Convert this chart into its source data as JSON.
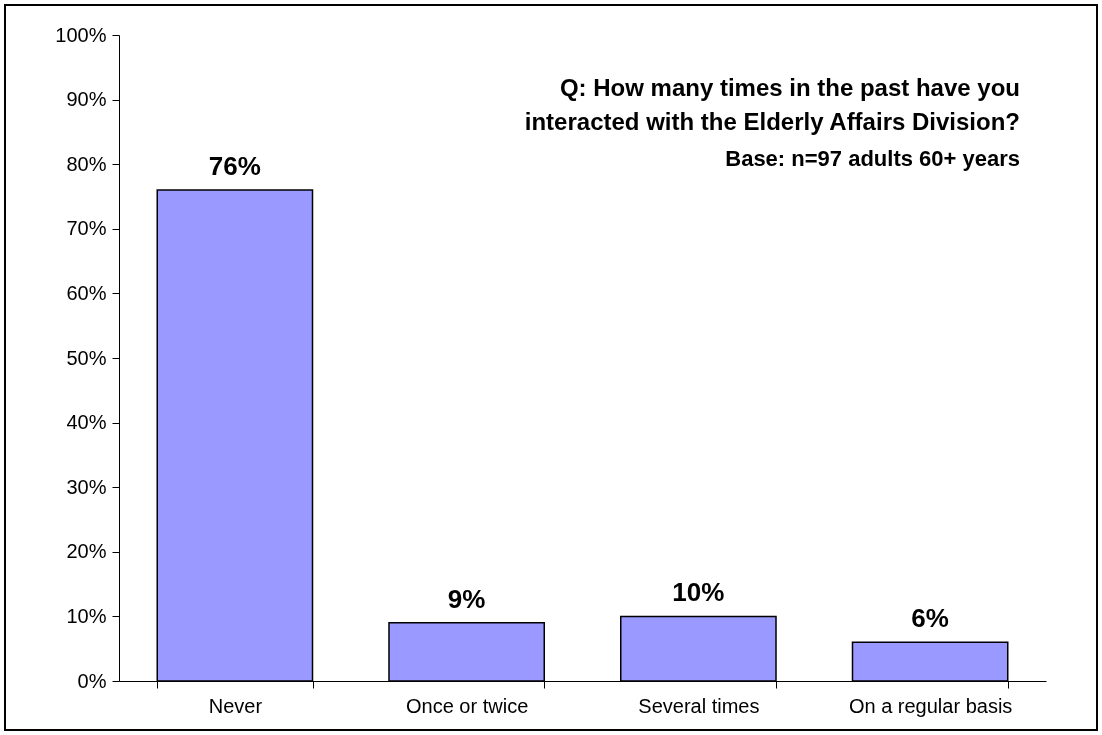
{
  "chart_data": {
    "type": "bar",
    "title": "Q: How many times in the past have you interacted with the Elderly Affairs Division?",
    "subtitle": "Base: n=97 adults 60+ years",
    "categories": [
      "Never",
      "Once or twice",
      "Several times",
      "On a regular basis"
    ],
    "values": [
      76,
      9,
      10,
      6
    ],
    "value_labels": [
      "76%",
      "9%",
      "10%",
      "6%"
    ],
    "color": "#9999ff",
    "ylim": [
      0,
      100
    ],
    "yticks": [
      {
        "value": 0,
        "label": "0%"
      },
      {
        "value": 10,
        "label": "10%"
      },
      {
        "value": 20,
        "label": "20%"
      },
      {
        "value": 30,
        "label": "30%"
      },
      {
        "value": 40,
        "label": "40%"
      },
      {
        "value": 50,
        "label": "50%"
      },
      {
        "value": 60,
        "label": "60%"
      },
      {
        "value": 70,
        "label": "70%"
      },
      {
        "value": 80,
        "label": "80%"
      },
      {
        "value": 90,
        "label": "90%"
      },
      {
        "value": 100,
        "label": "100%"
      }
    ],
    "grid": false
  }
}
